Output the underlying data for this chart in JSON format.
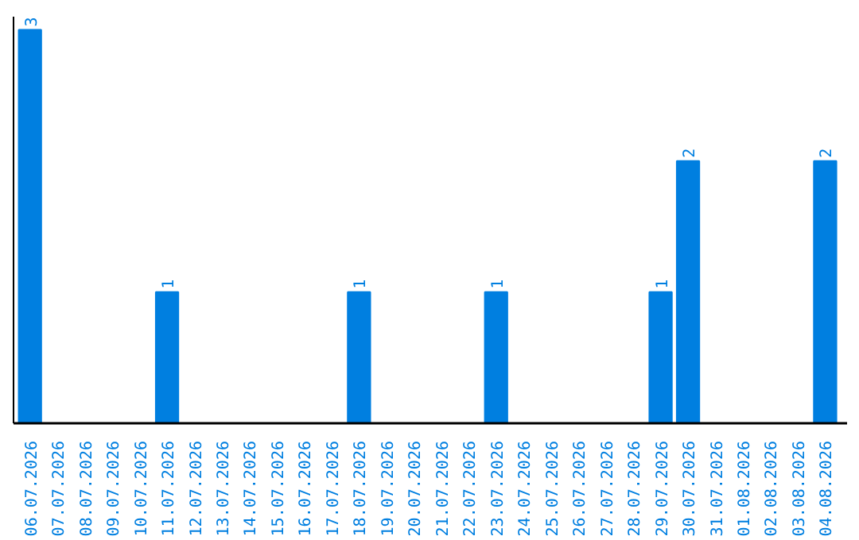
{
  "chart_data": {
    "type": "bar",
    "categories": [
      "06.07.2026",
      "07.07.2026",
      "08.07.2026",
      "09.07.2026",
      "10.07.2026",
      "11.07.2026",
      "12.07.2026",
      "13.07.2026",
      "14.07.2026",
      "15.07.2026",
      "16.07.2026",
      "17.07.2026",
      "18.07.2026",
      "19.07.2026",
      "20.07.2026",
      "21.07.2026",
      "22.07.2026",
      "23.07.2026",
      "24.07.2026",
      "25.07.2026",
      "26.07.2026",
      "27.07.2026",
      "28.07.2026",
      "29.07.2026",
      "30.07.2026",
      "31.07.2026",
      "01.08.2026",
      "02.08.2026",
      "03.08.2026",
      "04.08.2026"
    ],
    "values": [
      3,
      0,
      0,
      0,
      0,
      1,
      0,
      0,
      0,
      0,
      0,
      0,
      1,
      0,
      0,
      0,
      0,
      1,
      0,
      0,
      0,
      0,
      0,
      1,
      2,
      0,
      0,
      0,
      0,
      2
    ],
    "value_labels": [
      "3",
      null,
      null,
      null,
      null,
      "1",
      null,
      null,
      null,
      null,
      null,
      null,
      "1",
      null,
      null,
      null,
      null,
      "1",
      null,
      null,
      null,
      null,
      null,
      "1",
      "2",
      null,
      null,
      null,
      null,
      "2"
    ],
    "color": "#007fe0",
    "ylim": [
      0,
      3.1
    ],
    "tick_labels": "x",
    "grid": false
  }
}
